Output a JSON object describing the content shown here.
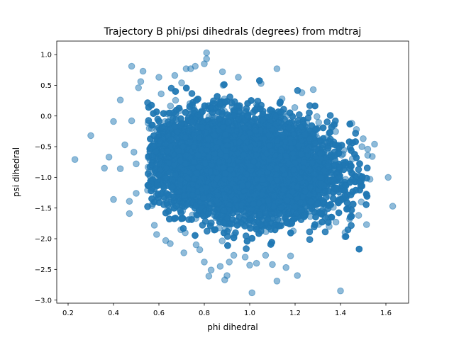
{
  "chart_data": {
    "type": "scatter",
    "title": "Trajectory B phi/psi dihedrals (degrees) from mdtraj",
    "xlabel": "phi dihedral",
    "ylabel": "psi dihedral",
    "xlim": [
      0.15,
      1.7
    ],
    "ylim": [
      -3.05,
      1.22
    ],
    "xticks": [
      0.2,
      0.4,
      0.6,
      0.8,
      1.0,
      1.2,
      1.4,
      1.6
    ],
    "yticks": [
      -3.0,
      -2.5,
      -2.0,
      -1.5,
      -1.0,
      -0.5,
      0.0,
      0.5,
      1.0
    ],
    "xtick_labels": [
      "0.2",
      "0.4",
      "0.6",
      "0.8",
      "1.0",
      "1.2",
      "1.4",
      "1.6"
    ],
    "ytick_labels": [
      "−3.0",
      "−2.5",
      "−2.0",
      "−1.5",
      "−1.0",
      "−0.5",
      "0.0",
      "0.5",
      "1.0"
    ],
    "grid": false,
    "legend": "none",
    "marker_color": "#1f77b4",
    "marker_alpha": 0.5,
    "dense_cluster": {
      "center": [
        0.97,
        -0.82
      ],
      "spread": [
        0.2,
        0.4
      ],
      "correlation": -0.15,
      "approx_points": 20000,
      "note_range_x": [
        0.55,
        1.52
      ],
      "note_range_y": [
        -2.35,
        0.62
      ]
    },
    "points": [
      {
        "x": 0.23,
        "y": -0.71
      },
      {
        "x": 0.3,
        "y": -0.32
      },
      {
        "x": 0.36,
        "y": -0.85
      },
      {
        "x": 0.38,
        "y": -0.67
      },
      {
        "x": 0.4,
        "y": -0.09
      },
      {
        "x": 0.4,
        "y": -1.36
      },
      {
        "x": 0.43,
        "y": 0.26
      },
      {
        "x": 0.43,
        "y": -0.86
      },
      {
        "x": 0.45,
        "y": -0.47
      },
      {
        "x": 0.47,
        "y": -1.39
      },
      {
        "x": 0.47,
        "y": -1.59
      },
      {
        "x": 0.48,
        "y": -0.08
      },
      {
        "x": 0.48,
        "y": 0.81
      },
      {
        "x": 0.49,
        "y": -0.59
      },
      {
        "x": 0.5,
        "y": -0.78
      },
      {
        "x": 0.5,
        "y": -1.26
      },
      {
        "x": 0.51,
        "y": 0.46
      },
      {
        "x": 0.52,
        "y": 0.56
      },
      {
        "x": 0.53,
        "y": 0.73
      },
      {
        "x": 0.55,
        "y": -1.21
      },
      {
        "x": 0.56,
        "y": -0.98
      },
      {
        "x": 0.57,
        "y": -1.46
      },
      {
        "x": 0.58,
        "y": -1.78
      },
      {
        "x": 0.59,
        "y": -1.93
      },
      {
        "x": 0.6,
        "y": 0.63
      },
      {
        "x": 0.61,
        "y": 0.36
      },
      {
        "x": 0.63,
        "y": -2.03
      },
      {
        "x": 0.65,
        "y": -2.08
      },
      {
        "x": 0.67,
        "y": 0.66
      },
      {
        "x": 0.7,
        "y": 0.54
      },
      {
        "x": 0.71,
        "y": -2.23
      },
      {
        "x": 0.72,
        "y": 0.77
      },
      {
        "x": 0.74,
        "y": 0.77
      },
      {
        "x": 0.76,
        "y": 0.81
      },
      {
        "x": 0.78,
        "y": -2.18
      },
      {
        "x": 0.8,
        "y": 0.85
      },
      {
        "x": 0.8,
        "y": -2.38
      },
      {
        "x": 0.81,
        "y": 1.03
      },
      {
        "x": 0.81,
        "y": 0.93
      },
      {
        "x": 0.82,
        "y": -2.61
      },
      {
        "x": 0.83,
        "y": -2.51
      },
      {
        "x": 0.87,
        "y": -2.45
      },
      {
        "x": 0.88,
        "y": 0.72
      },
      {
        "x": 0.89,
        "y": -2.67
      },
      {
        "x": 0.9,
        "y": -2.6
      },
      {
        "x": 0.91,
        "y": -2.38
      },
      {
        "x": 0.93,
        "y": -2.27
      },
      {
        "x": 0.95,
        "y": 0.63
      },
      {
        "x": 0.98,
        "y": -2.3
      },
      {
        "x": 1.0,
        "y": -2.43
      },
      {
        "x": 1.01,
        "y": -2.88
      },
      {
        "x": 1.03,
        "y": -2.4
      },
      {
        "x": 1.05,
        "y": 0.53
      },
      {
        "x": 1.07,
        "y": -2.27
      },
      {
        "x": 1.1,
        "y": -2.42
      },
      {
        "x": 1.12,
        "y": 0.77
      },
      {
        "x": 1.12,
        "y": -2.69
      },
      {
        "x": 1.16,
        "y": -2.47
      },
      {
        "x": 1.18,
        "y": -2.28
      },
      {
        "x": 1.21,
        "y": -2.6
      },
      {
        "x": 1.23,
        "y": 0.38
      },
      {
        "x": 1.28,
        "y": 0.43
      },
      {
        "x": 1.35,
        "y": -1.8
      },
      {
        "x": 1.38,
        "y": -1.73
      },
      {
        "x": 1.4,
        "y": -2.85
      },
      {
        "x": 1.42,
        "y": -1.9
      },
      {
        "x": 1.44,
        "y": -1.68
      },
      {
        "x": 1.45,
        "y": -0.12
      },
      {
        "x": 1.47,
        "y": -0.22
      },
      {
        "x": 1.48,
        "y": -1.62
      },
      {
        "x": 1.5,
        "y": -0.37
      },
      {
        "x": 1.52,
        "y": -0.54
      },
      {
        "x": 1.52,
        "y": -0.64
      },
      {
        "x": 1.53,
        "y": -1.03
      },
      {
        "x": 1.54,
        "y": -0.66
      },
      {
        "x": 1.55,
        "y": -0.46
      },
      {
        "x": 1.61,
        "y": -1.0
      },
      {
        "x": 1.63,
        "y": -1.47
      }
    ]
  }
}
